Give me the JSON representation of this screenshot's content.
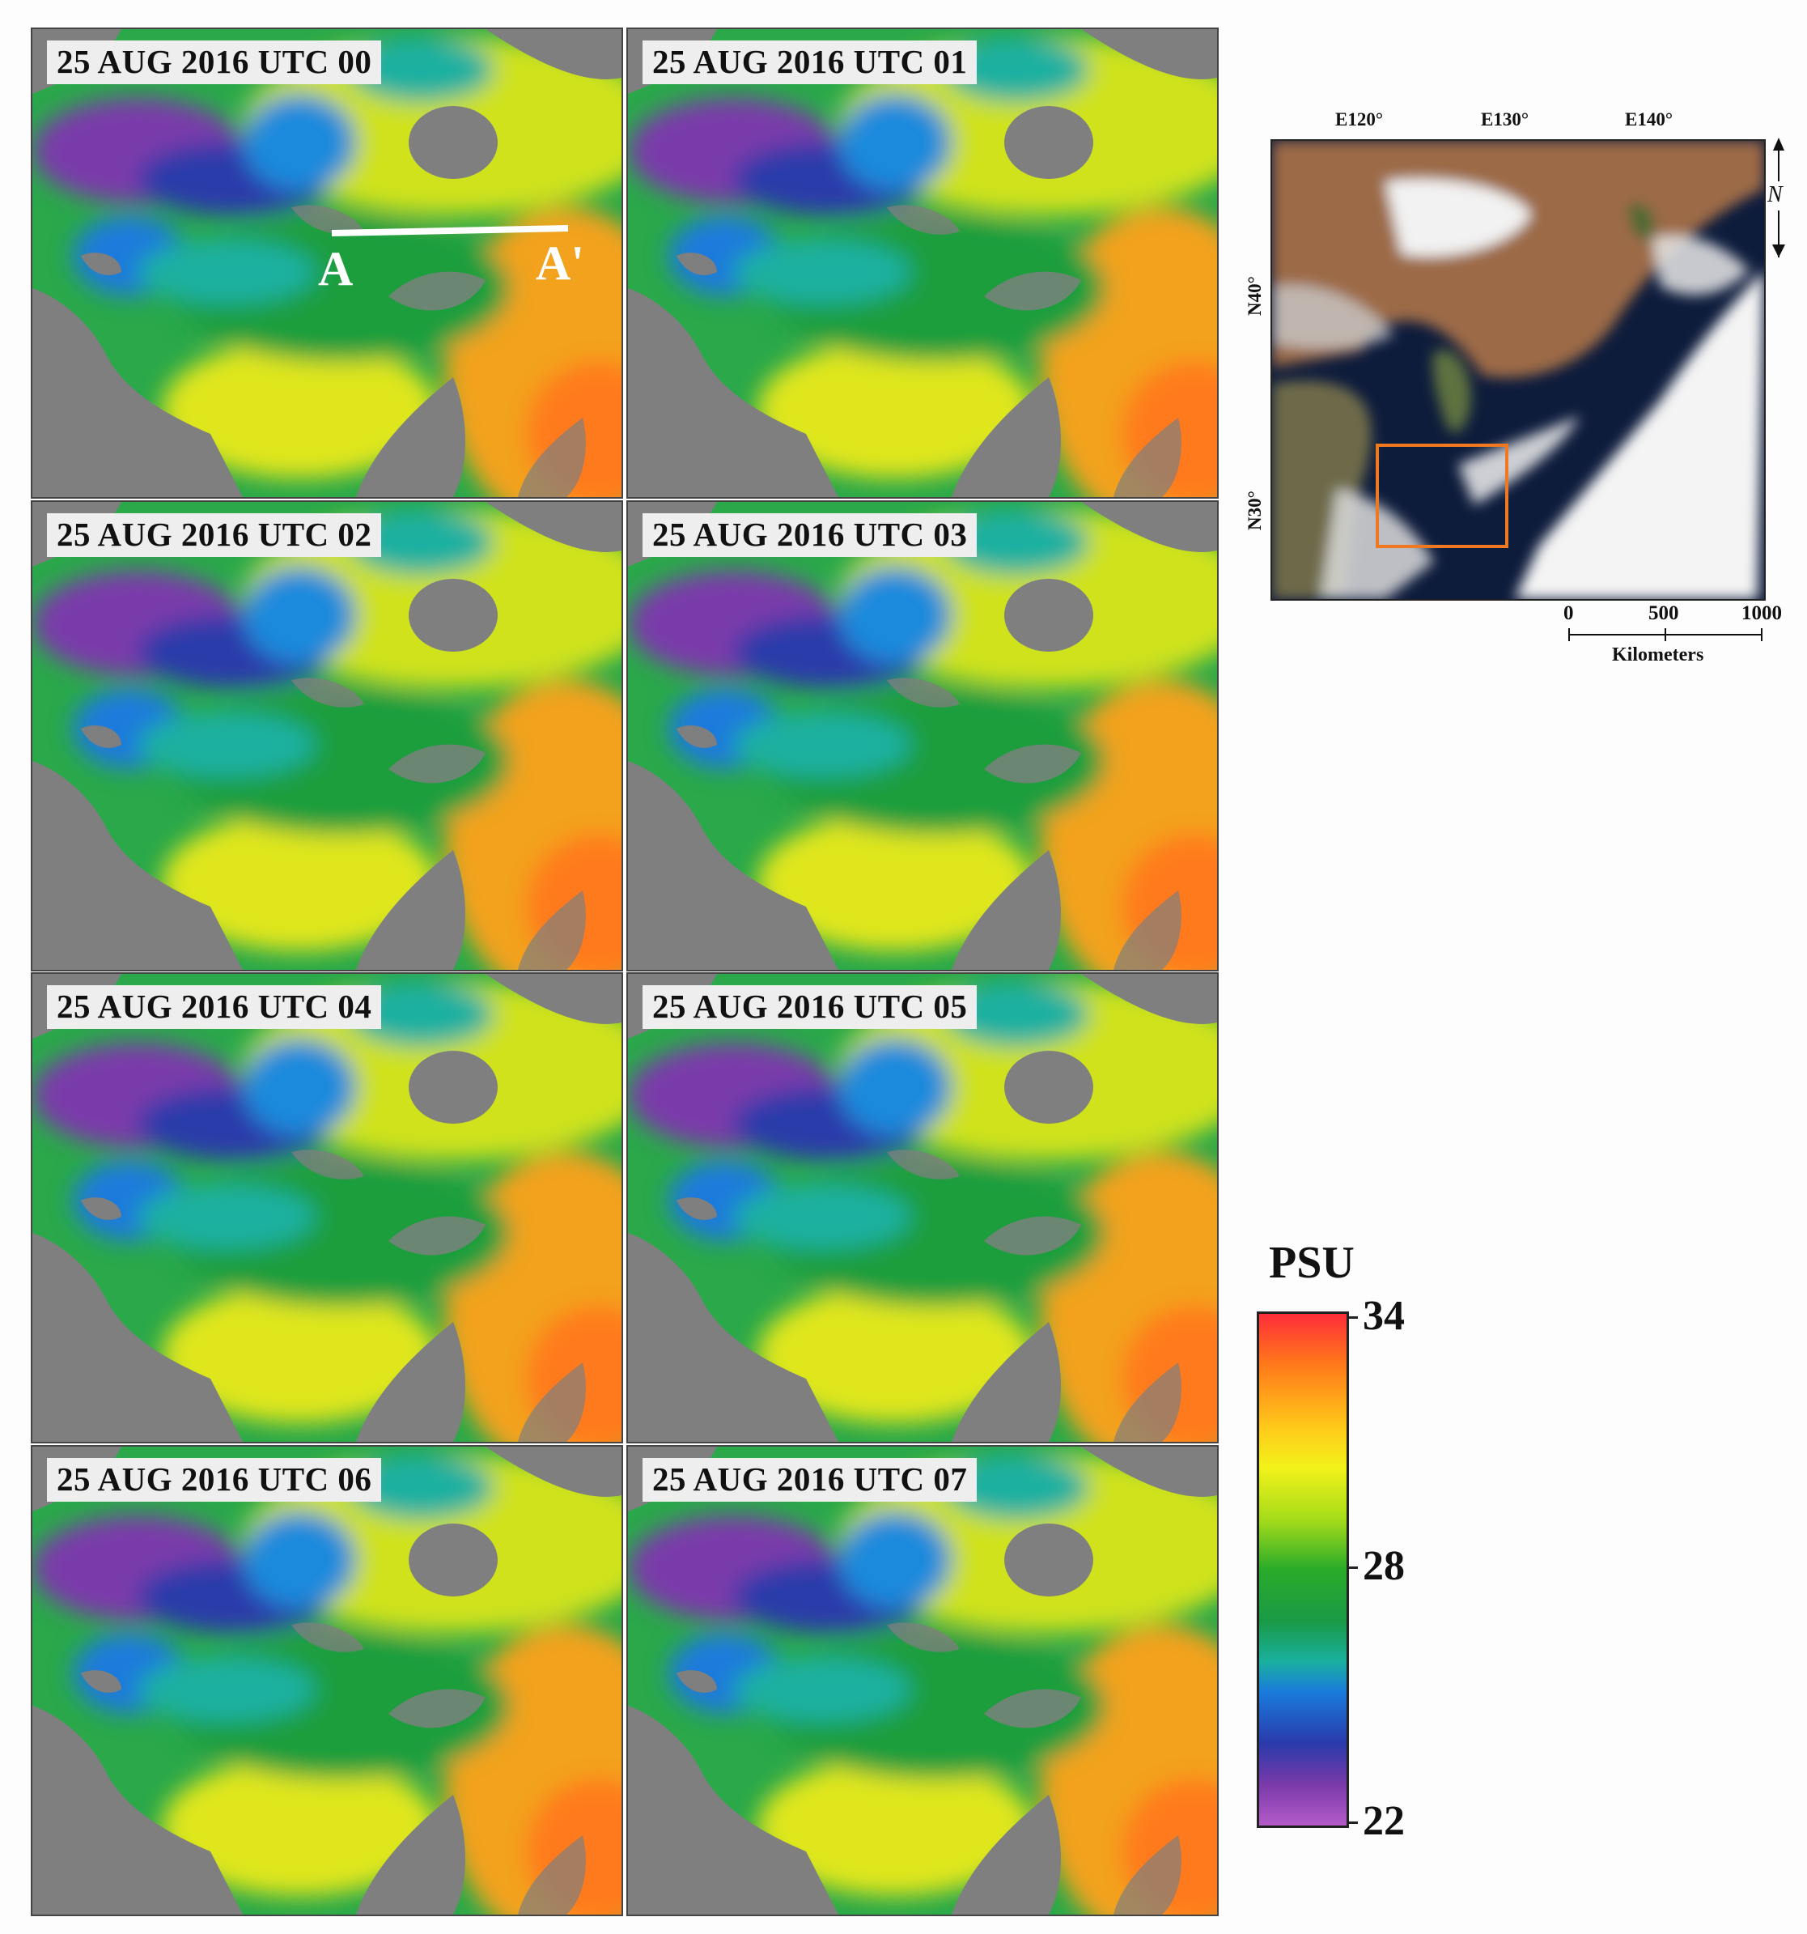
{
  "panels": [
    {
      "label": "25 AUG 2016 UTC 00"
    },
    {
      "label": "25 AUG 2016 UTC 01"
    },
    {
      "label": "25 AUG 2016 UTC 02"
    },
    {
      "label": "25 AUG 2016 UTC 03"
    },
    {
      "label": "25 AUG 2016 UTC 04"
    },
    {
      "label": "25 AUG 2016 UTC 05"
    },
    {
      "label": "25 AUG 2016 UTC 06"
    },
    {
      "label": "25 AUG 2016 UTC 07"
    }
  ],
  "transect": {
    "start_label": "A",
    "end_label": "A'"
  },
  "overview_map": {
    "lon_labels": [
      "E120°",
      "E130°",
      "E140°"
    ],
    "lat_labels": [
      "N40°",
      "N30°"
    ],
    "north_symbol": "N",
    "scale_ticks": [
      "0",
      "500",
      "1000"
    ],
    "scale_unit": "Kilometers",
    "study_area_box_color": "#f07820"
  },
  "colorbar": {
    "title": "PSU",
    "ticks": [
      "34",
      "28",
      "22"
    ],
    "min": 22,
    "max": 34,
    "colors": [
      "#b45cc8",
      "#2a3aaa",
      "#1a7adc",
      "#1a9a46",
      "#2aab2a",
      "#f2f21a",
      "#ffc81a",
      "#ff7a1a",
      "#ff2d3a"
    ]
  },
  "land_mask_color": "#7f7f7f"
}
